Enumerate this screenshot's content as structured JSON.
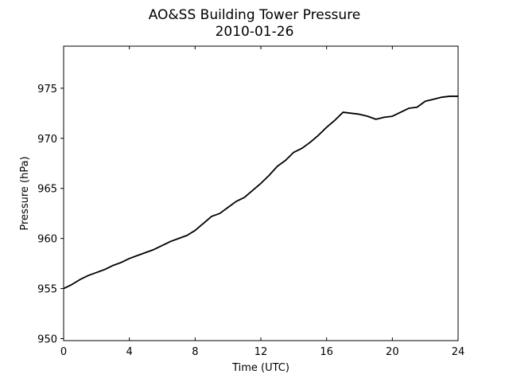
{
  "chart_data": {
    "type": "line",
    "title": "AO&SS Building Tower Pressure",
    "subtitle": "2010-01-26",
    "xlabel": "Time (UTC)",
    "ylabel": "Pressure (hPa)",
    "xlim": [
      0,
      24
    ],
    "ylim": [
      949.8,
      979.2
    ],
    "xticks": [
      0,
      4,
      8,
      12,
      16,
      20,
      24
    ],
    "yticks": [
      950,
      955,
      960,
      965,
      970,
      975
    ],
    "grid": false,
    "legend": "none",
    "line_color": "#000000",
    "series": [
      {
        "x": [
          0,
          0.5,
          1,
          1.5,
          2,
          2.5,
          3,
          3.5,
          4,
          4.5,
          5,
          5.5,
          6,
          6.5,
          7,
          7.5,
          8,
          8.5,
          9,
          9.5,
          10,
          10.5,
          11,
          11.5,
          12,
          12.5,
          13,
          13.5,
          14,
          14.5,
          15,
          15.5,
          16,
          16.5,
          17,
          17.5,
          18,
          18.5,
          19,
          19.5,
          20,
          20.5,
          21,
          21.5,
          22,
          22.5,
          23,
          23.5,
          24
        ],
        "values": [
          955.0,
          955.4,
          955.9,
          956.3,
          956.6,
          956.9,
          957.3,
          957.6,
          958.0,
          958.3,
          958.6,
          958.9,
          959.3,
          959.7,
          960.0,
          960.3,
          960.8,
          961.5,
          962.2,
          962.5,
          963.1,
          963.7,
          964.1,
          964.8,
          965.5,
          966.3,
          967.2,
          967.8,
          968.6,
          969.0,
          969.6,
          970.3,
          971.1,
          971.8,
          972.6,
          972.5,
          972.4,
          972.2,
          971.9,
          972.1,
          972.2,
          972.6,
          973.0,
          973.1,
          973.7,
          973.9,
          974.1,
          974.2,
          974.2
        ]
      }
    ]
  }
}
